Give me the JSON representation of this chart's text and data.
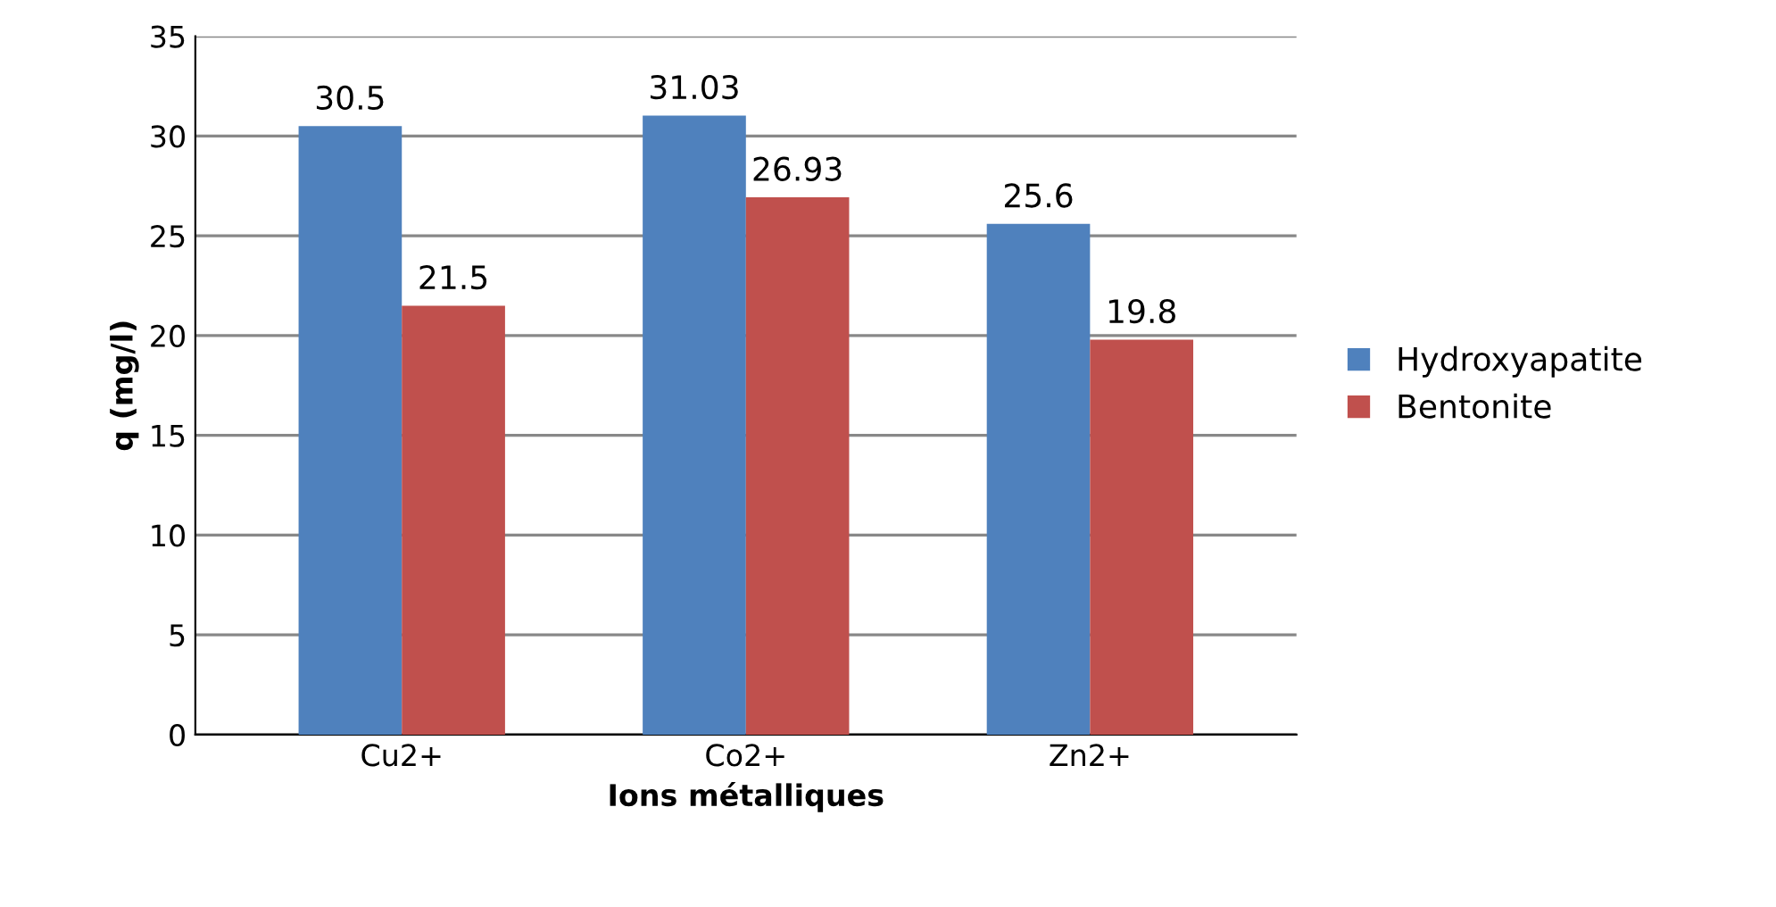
{
  "chart_data": {
    "type": "bar",
    "xlabel": "Ions métalliques",
    "ylabel": "q (mg/l)",
    "categories": [
      "Cu2+",
      "Co2+",
      "Zn2+"
    ],
    "series": [
      {
        "name": "Hydroxyapatite",
        "color": "#4f81bd",
        "values": [
          30.5,
          31.03,
          25.6
        ]
      },
      {
        "name": "Bentonite",
        "color": "#c0504d",
        "values": [
          21.5,
          26.93,
          19.8
        ]
      }
    ],
    "ylim": [
      0,
      35
    ],
    "yticks": [
      0,
      5,
      10,
      15,
      20,
      25,
      30,
      35
    ],
    "grid": "y",
    "legend": "right",
    "data_labels": true
  }
}
